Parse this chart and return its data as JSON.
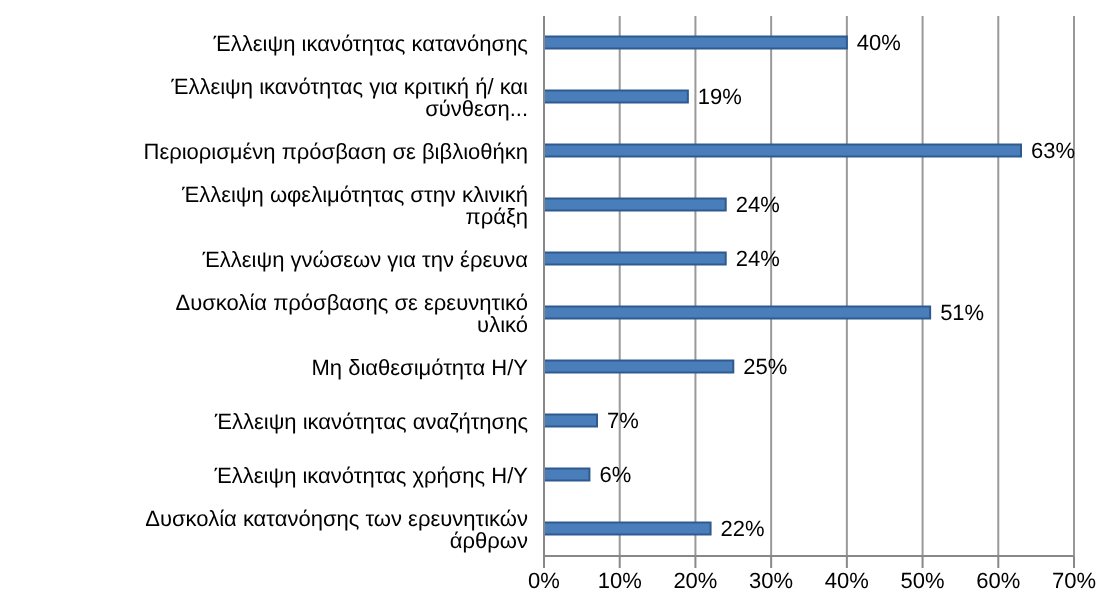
{
  "chart_data": {
    "type": "bar",
    "orientation": "horizontal",
    "categories": [
      "Έλλειψη ικανότητας κατανόησης",
      "Έλλειψη ικανότητας για κριτική ή/ και σύνθεση...",
      "Περιορισμένη πρόσβαση σε βιβλιοθήκη",
      "Έλλειψη ωφελιμότητας στην κλινική πράξη",
      "Έλλειψη γνώσεων για την έρευνα",
      "Δυσκολία πρόσβασης σε ερευνητικό υλικό",
      "Μη διαθεσιμότητα Η/Υ",
      "Έλλειψη ικανότητας αναζήτησης",
      "Έλλειψη ικανότητας χρήσης Η/Υ",
      "Δυσκολία κατανόησης των ερευνητικών άρθρων"
    ],
    "values": [
      40,
      19,
      63,
      24,
      24,
      51,
      25,
      7,
      6,
      22
    ],
    "value_labels": [
      "40%",
      "19%",
      "63%",
      "24%",
      "24%",
      "51%",
      "25%",
      "7%",
      "6%",
      "22%"
    ],
    "color": "#4a7ebb",
    "xlim": [
      0,
      70
    ],
    "xticks": [
      {
        "value": 0,
        "label": "0%"
      },
      {
        "value": 10,
        "label": "10%"
      },
      {
        "value": 20,
        "label": "20%"
      },
      {
        "value": 30,
        "label": "30%"
      },
      {
        "value": 40,
        "label": "40%"
      },
      {
        "value": 50,
        "label": "50%"
      },
      {
        "value": 60,
        "label": "60%"
      },
      {
        "value": 70,
        "label": "70%"
      }
    ],
    "grid": "x",
    "legend": false
  }
}
